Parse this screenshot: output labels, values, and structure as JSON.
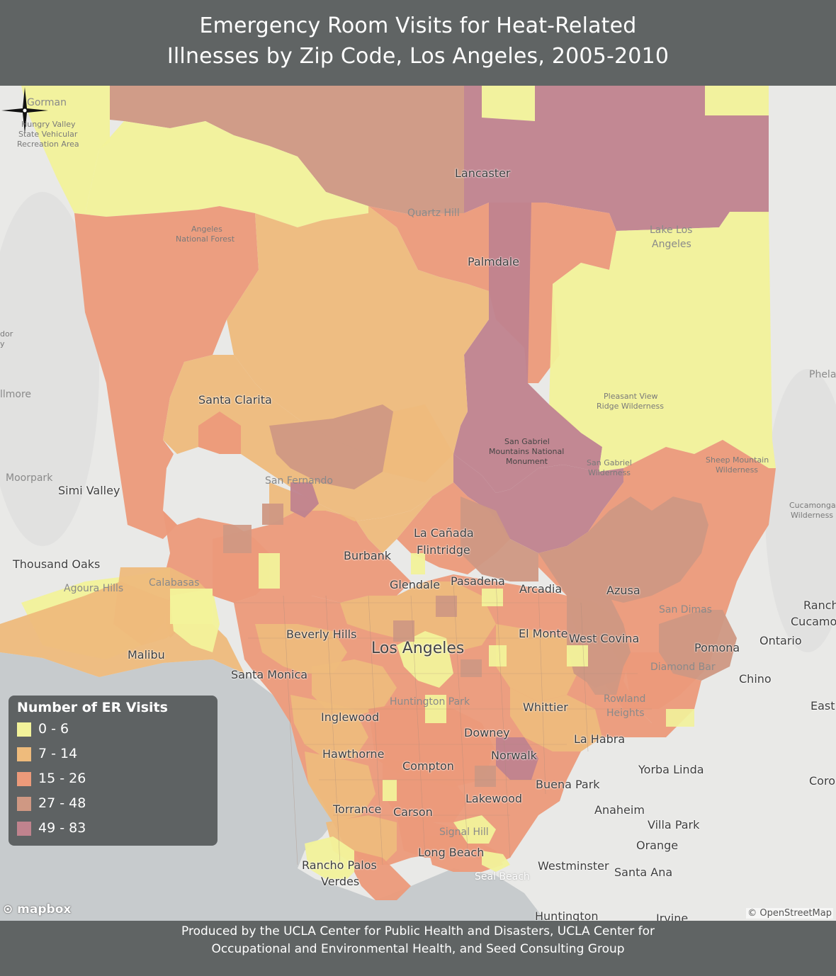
{
  "title": {
    "line1": "Emergency Room Visits for Heat-Related",
    "line2": "Illnesses by Zip Code, Los Angeles, 2005-2010"
  },
  "legend": {
    "title": "Number of ER Visits",
    "classes": [
      {
        "label": "0 - 6",
        "color": "#f2f29a"
      },
      {
        "label": "7 - 14",
        "color": "#eebb7c"
      },
      {
        "label": "15 - 26",
        "color": "#ec9a7a"
      },
      {
        "label": "27 - 48",
        "color": "#cf9883"
      },
      {
        "label": "49 - 83",
        "color": "#c0838e"
      }
    ]
  },
  "colors": {
    "header_bg": "#606464",
    "land": "#e9e9e7",
    "ocean": "#c7cbcd"
  },
  "places": {
    "lancaster": "Lancaster",
    "palmdale": "Palmdale",
    "quartz_hill": "Quartz Hill",
    "lake_los_angeles_1": "Lake Los",
    "lake_los_angeles_2": "Angeles",
    "gorman": "Gorman",
    "hungry_valley_1": "Hungry Valley",
    "hungry_valley_2": "State Vehicular",
    "hungry_valley_3": "Recreation Area",
    "angeles_nf_1": "Angeles",
    "angeles_nf_2": "National Forest",
    "santa_clarita": "Santa Clarita",
    "pleasant_view_1": "Pleasant View",
    "pleasant_view_2": "Ridge Wilderness",
    "sg_monument_1": "San Gabriel",
    "sg_monument_2": "Mountains National",
    "sg_monument_3": "Monument",
    "sg_wilderness_1": "San Gabriel",
    "sg_wilderness_2": "Wilderness",
    "sheep_mountain_1": "Sheep Mountain",
    "sheep_mountain_2": "Wilderness",
    "cucamonga_1": "Cucamonga",
    "cucamonga_2": "Wilderness",
    "phelan": "Phela",
    "fillmore": "llmore",
    "dor_1": "dor",
    "dor_2": "y",
    "moorpark": "Moorpark",
    "simi_valley": "Simi Valley",
    "thousand_oaks": "Thousand Oaks",
    "agoura_hills": "Agoura Hills",
    "calabasas": "Calabasas",
    "malibu": "Malibu",
    "san_fernando": "San Fernando",
    "la_canada_1": "La Cañada",
    "la_canada_2": "Flintridge",
    "burbank": "Burbank",
    "glendale": "Glendale",
    "pasadena": "Pasadena",
    "arcadia": "Arcadia",
    "azusa": "Azusa",
    "san_dimas": "San Dimas",
    "rancho": "Ranch",
    "cucamonga": "Cucamo",
    "ontario": "Ontario",
    "pomona": "Pomona",
    "diamond_bar": "Diamond Bar",
    "chino": "Chino",
    "east": "East",
    "beverly_hills": "Beverly Hills",
    "los_angeles": "Los Angeles",
    "el_monte": "El Monte",
    "west_covina": "West Covina",
    "santa_monica": "Santa Monica",
    "huntington_park": "Huntington Park",
    "whittier": "Whittier",
    "rowland_1": "Rowland",
    "rowland_2": "Heights",
    "inglewood": "Inglewood",
    "downey": "Downey",
    "la_habra": "La Habra",
    "hawthorne": "Hawthorne",
    "norwalk": "Norwalk",
    "compton": "Compton",
    "yorba_linda": "Yorba Linda",
    "buena_park": "Buena Park",
    "corona": "Coro",
    "torrance": "Torrance",
    "carson": "Carson",
    "lakewood": "Lakewood",
    "anaheim": "Anaheim",
    "villa_park": "Villa Park",
    "signal_hill": "Signal Hill",
    "orange": "Orange",
    "long_beach": "Long Beach",
    "rancho_palos_1": "Rancho Palos",
    "rancho_palos_2": "Verdes",
    "westminster": "Westminster",
    "santa_ana": "Santa Ana",
    "seal_beach": "Seal Beach",
    "huntington": "Huntington",
    "irvine": "Irvine"
  },
  "attribution": {
    "mapbox": "mapbox",
    "osm": "© OpenStreetMap"
  },
  "footer": {
    "line1": "Produced by the UCLA Center for Public Health and Disasters, UCLA Center for",
    "line2": "Occupational and Environmental Health, and Seed Consulting Group"
  }
}
